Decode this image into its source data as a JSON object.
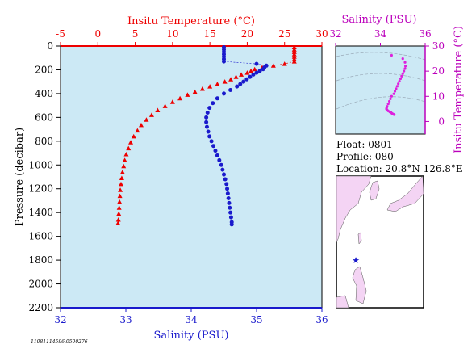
{
  "colors": {
    "plot_background": "#cce9f5",
    "temperature": "#ee0000",
    "salinity": "#1a1acc",
    "ts_curve": "#dd22dd",
    "ts_axis": "#bb00bb",
    "land": "#f4d4f4",
    "text": "#000000"
  },
  "chart_data": [
    {
      "type": "scatter",
      "title": "",
      "xlabel_top": "Insitu Temperature (°C)",
      "xlabel_bottom": "Salinity (PSU)",
      "ylabel": "Pressure (decibar)",
      "temperature_axis": {
        "range": [
          -5,
          30
        ],
        "ticks": [
          "-5",
          "0",
          "5",
          "10",
          "15",
          "20",
          "25",
          "30"
        ]
      },
      "salinity_axis": {
        "range": [
          32,
          36
        ],
        "ticks": [
          "32",
          "33",
          "34",
          "35",
          "36"
        ]
      },
      "pressure_axis": {
        "range": [
          0,
          2200
        ],
        "inverted": true,
        "ticks": [
          "0",
          "200",
          "400",
          "600",
          "800",
          "1000",
          "1200",
          "1400",
          "1600",
          "1800",
          "2000",
          "2200"
        ]
      },
      "series": [
        {
          "marker": "triangle",
          "axis": "temperature",
          "points": [
            [
              26.3,
              10
            ],
            [
              26.3,
              30
            ],
            [
              26.3,
              50
            ],
            [
              26.3,
              70
            ],
            [
              26.3,
              90
            ],
            [
              26.3,
              110
            ],
            [
              26.3,
              130
            ],
            [
              25.0,
              150
            ],
            [
              23.5,
              165
            ],
            [
              22.0,
              180
            ],
            [
              21.0,
              195
            ],
            [
              20.5,
              210
            ],
            [
              20.0,
              225
            ],
            [
              19.2,
              240
            ],
            [
              18.5,
              260
            ],
            [
              17.8,
              280
            ],
            [
              17.0,
              300
            ],
            [
              16.0,
              320
            ],
            [
              15.0,
              340
            ],
            [
              14.0,
              360
            ],
            [
              13.0,
              385
            ],
            [
              12.0,
              410
            ],
            [
              11.0,
              440
            ],
            [
              10.0,
              470
            ],
            [
              9.0,
              505
            ],
            [
              8.0,
              540
            ],
            [
              7.2,
              580
            ],
            [
              6.5,
              620
            ],
            [
              5.8,
              665
            ],
            [
              5.3,
              710
            ],
            [
              4.8,
              760
            ],
            [
              4.4,
              810
            ],
            [
              4.1,
              860
            ],
            [
              3.8,
              910
            ],
            [
              3.6,
              960
            ],
            [
              3.45,
              1010
            ],
            [
              3.3,
              1060
            ],
            [
              3.2,
              1110
            ],
            [
              3.1,
              1160
            ],
            [
              3.0,
              1210
            ],
            [
              2.95,
              1260
            ],
            [
              2.9,
              1310
            ],
            [
              2.85,
              1360
            ],
            [
              2.8,
              1410
            ],
            [
              2.75,
              1460
            ],
            [
              2.7,
              1490
            ]
          ]
        },
        {
          "marker": "circle",
          "axis": "salinity",
          "points": [
            [
              34.5,
              10
            ],
            [
              34.5,
              30
            ],
            [
              34.5,
              50
            ],
            [
              34.5,
              70
            ],
            [
              34.5,
              90
            ],
            [
              34.5,
              110
            ],
            [
              34.5,
              130
            ],
            [
              35.0,
              150
            ],
            [
              35.15,
              165
            ],
            [
              35.12,
              180
            ],
            [
              35.1,
              195
            ],
            [
              35.05,
              210
            ],
            [
              35.0,
              225
            ],
            [
              34.95,
              240
            ],
            [
              34.9,
              260
            ],
            [
              34.85,
              280
            ],
            [
              34.8,
              300
            ],
            [
              34.75,
              320
            ],
            [
              34.7,
              340
            ],
            [
              34.6,
              370
            ],
            [
              34.5,
              400
            ],
            [
              34.4,
              440
            ],
            [
              34.33,
              480
            ],
            [
              34.28,
              520
            ],
            [
              34.25,
              560
            ],
            [
              34.23,
              600
            ],
            [
              34.23,
              640
            ],
            [
              34.24,
              680
            ],
            [
              34.26,
              720
            ],
            [
              34.28,
              760
            ],
            [
              34.31,
              800
            ],
            [
              34.34,
              840
            ],
            [
              34.37,
              880
            ],
            [
              34.4,
              920
            ],
            [
              34.43,
              960
            ],
            [
              34.46,
              1000
            ],
            [
              34.48,
              1040
            ],
            [
              34.5,
              1080
            ],
            [
              34.52,
              1120
            ],
            [
              34.54,
              1160
            ],
            [
              34.55,
              1200
            ],
            [
              34.56,
              1240
            ],
            [
              34.57,
              1280
            ],
            [
              34.58,
              1320
            ],
            [
              34.59,
              1360
            ],
            [
              34.6,
              1400
            ],
            [
              34.61,
              1440
            ],
            [
              34.62,
              1480
            ],
            [
              34.62,
              1500
            ]
          ]
        }
      ]
    },
    {
      "type": "scatter",
      "title": "",
      "xlabel": "Salinity (PSU)",
      "ylabel": "Insitu Temperature (°C)",
      "salinity_axis": {
        "range": [
          32,
          36
        ],
        "ticks": [
          "32",
          "34",
          "36"
        ]
      },
      "temperature_axis": {
        "range": [
          -5,
          30
        ],
        "ticks": [
          "0",
          "10",
          "20",
          "30"
        ]
      },
      "points": [
        [
          34.5,
          26.3
        ],
        [
          35.0,
          25.0
        ],
        [
          35.1,
          23.5
        ],
        [
          35.12,
          22.0
        ],
        [
          35.1,
          21.0
        ],
        [
          35.05,
          20.0
        ],
        [
          35.0,
          19.0
        ],
        [
          34.95,
          18.0
        ],
        [
          34.9,
          17.0
        ],
        [
          34.85,
          16.0
        ],
        [
          34.8,
          15.0
        ],
        [
          34.75,
          14.0
        ],
        [
          34.7,
          13.0
        ],
        [
          34.65,
          12.0
        ],
        [
          34.6,
          11.0
        ],
        [
          34.5,
          10.0
        ],
        [
          34.45,
          9.0
        ],
        [
          34.4,
          8.0
        ],
        [
          34.35,
          7.0
        ],
        [
          34.3,
          6.0
        ],
        [
          34.28,
          5.5
        ],
        [
          34.27,
          5.0
        ],
        [
          34.3,
          4.6
        ],
        [
          34.35,
          4.2
        ],
        [
          34.42,
          3.8
        ],
        [
          34.48,
          3.5
        ],
        [
          34.52,
          3.2
        ],
        [
          34.56,
          3.0
        ],
        [
          34.6,
          2.8
        ],
        [
          34.62,
          2.7
        ]
      ]
    }
  ],
  "info": {
    "float": "Float:  0801",
    "profile": "Profile:  080",
    "location": "Location:  20.8°N  126.8°E"
  },
  "footer_id": "11081114596.0500276"
}
